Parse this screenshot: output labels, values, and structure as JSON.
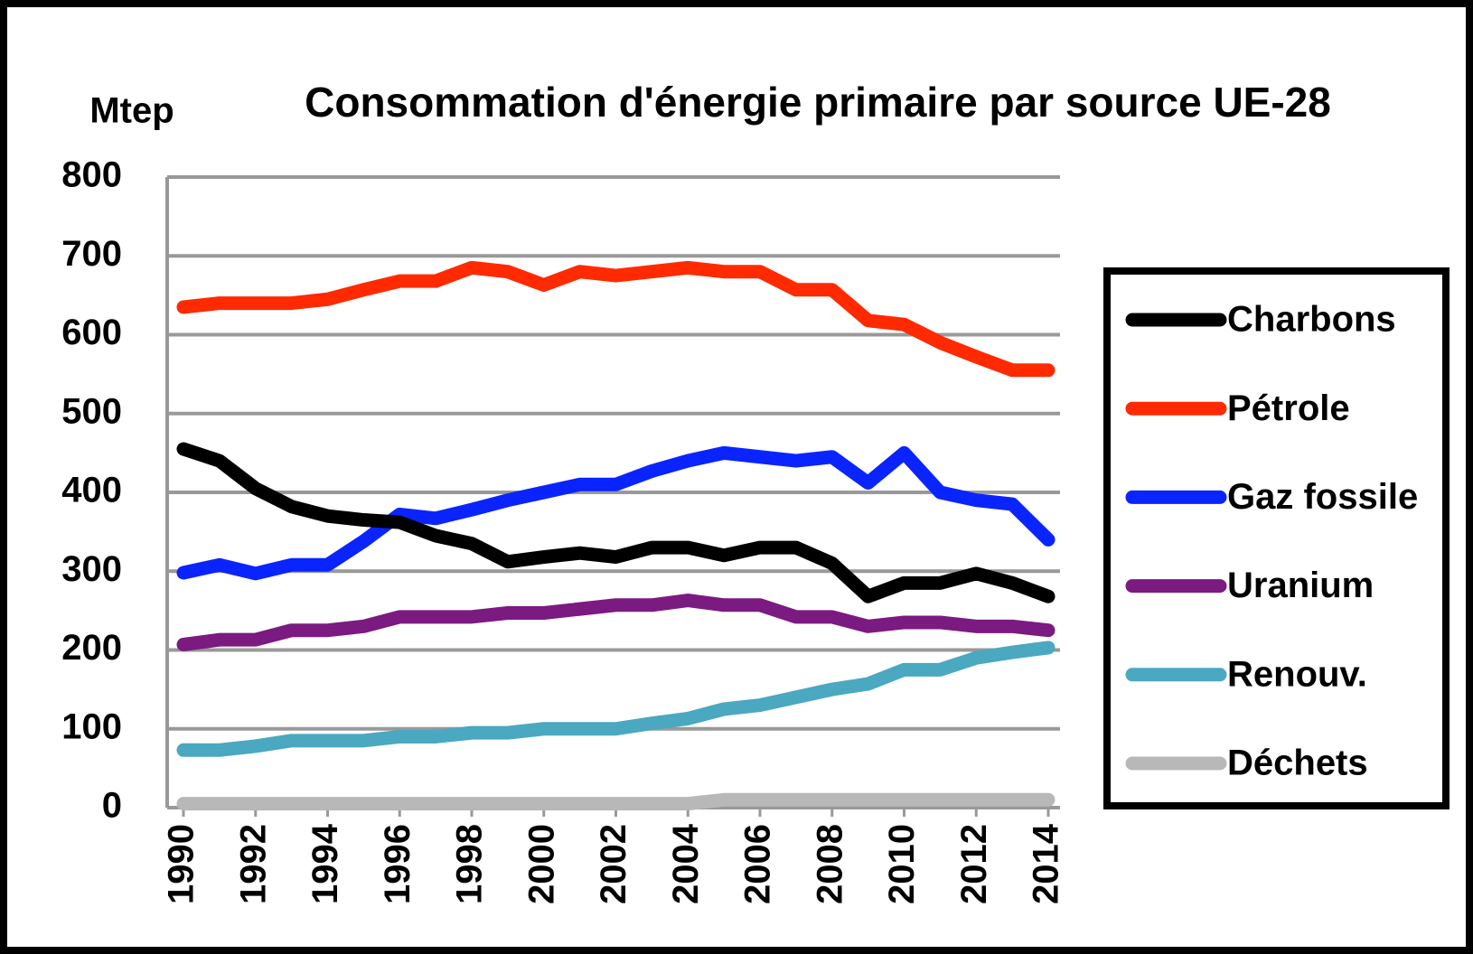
{
  "chart_data": {
    "type": "line",
    "title": "Consommation d'énergie primaire par source UE-28",
    "y_label": "Mtep",
    "x": [
      1990,
      1991,
      1992,
      1993,
      1994,
      1995,
      1996,
      1997,
      1998,
      1999,
      2000,
      2001,
      2002,
      2003,
      2004,
      2005,
      2006,
      2007,
      2008,
      2009,
      2010,
      2011,
      2012,
      2013,
      2014
    ],
    "xlim": [
      1990,
      2014
    ],
    "xticks": [
      1990,
      1992,
      1994,
      1996,
      1998,
      2000,
      2002,
      2004,
      2006,
      2008,
      2010,
      2012,
      2014
    ],
    "ylim": [
      0,
      800
    ],
    "yticks": [
      0,
      100,
      200,
      300,
      400,
      500,
      600,
      700,
      800
    ],
    "grid": true,
    "legend": "right",
    "series": [
      {
        "name": "Charbons",
        "color": "#000000",
        "values": [
          455,
          440,
          405,
          382,
          370,
          365,
          362,
          345,
          335,
          312,
          318,
          323,
          318,
          330,
          330,
          320,
          330,
          330,
          310,
          268,
          285,
          285,
          297,
          285,
          268
        ]
      },
      {
        "name": "Pétrole",
        "color": "#ff2a00",
        "values": [
          635,
          640,
          640,
          640,
          645,
          657,
          668,
          668,
          685,
          680,
          663,
          680,
          675,
          680,
          685,
          680,
          680,
          657,
          657,
          618,
          613,
          590,
          572,
          555,
          555
        ]
      },
      {
        "name": "Gaz fossile",
        "color": "#0a24ff",
        "values": [
          298,
          308,
          297,
          308,
          308,
          338,
          372,
          367,
          378,
          390,
          400,
          410,
          410,
          427,
          440,
          450,
          445,
          440,
          445,
          412,
          450,
          400,
          390,
          385,
          340
        ]
      },
      {
        "name": "Uranium",
        "color": "#7b1a80",
        "values": [
          207,
          213,
          213,
          225,
          225,
          230,
          242,
          242,
          242,
          247,
          247,
          252,
          257,
          257,
          263,
          257,
          257,
          242,
          242,
          230,
          235,
          235,
          230,
          230,
          225
        ]
      },
      {
        "name": "Renouv.",
        "color": "#4aa8c0",
        "values": [
          73,
          73,
          78,
          85,
          85,
          85,
          90,
          90,
          95,
          95,
          100,
          100,
          100,
          107,
          113,
          125,
          130,
          140,
          150,
          157,
          175,
          175,
          190,
          197,
          203
        ]
      },
      {
        "name": "Déchets",
        "color": "#b8b8b8",
        "values": [
          5,
          5,
          5,
          5,
          5,
          5,
          5,
          5,
          5,
          5,
          5,
          5,
          5,
          5,
          5,
          10,
          10,
          10,
          10,
          10,
          10,
          10,
          10,
          10,
          10
        ]
      }
    ]
  }
}
